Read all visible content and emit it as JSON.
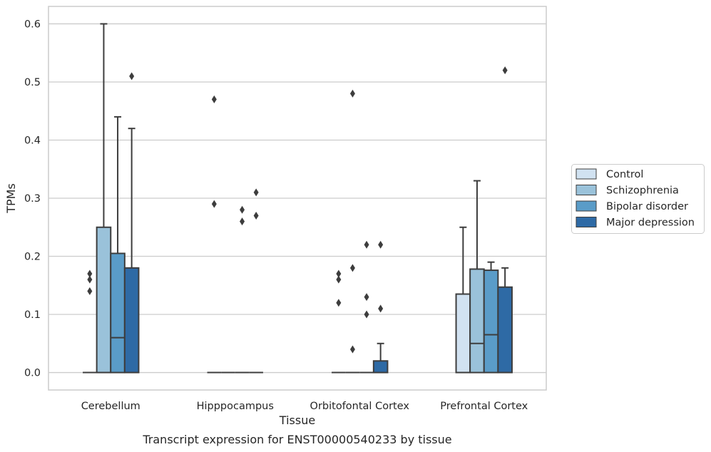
{
  "chart_data": {
    "type": "box",
    "caption": "Transcript expression for ENST00000540233 by tissue",
    "xlabel": "Tissue",
    "ylabel": "TPMs",
    "ylim": [
      -0.03,
      0.63
    ],
    "yticks": [
      0.0,
      0.1,
      0.2,
      0.3,
      0.4,
      0.5,
      0.6
    ],
    "ytick_labels": [
      "0.0",
      "0.1",
      "0.2",
      "0.3",
      "0.4",
      "0.5",
      "0.6"
    ],
    "grid": true,
    "legend_position": "right",
    "categories": [
      "Cerebellum",
      "Hipppocampus",
      "Orbitofontal Cortex",
      "Prefrontal Cortex"
    ],
    "series": [
      {
        "name": "Control",
        "color": "#d1e2f1",
        "boxes": [
          {
            "whislo": 0,
            "q1": 0,
            "med": 0,
            "q3": 0,
            "whishi": 0,
            "fliers": [
              0.14,
              0.16,
              0.17
            ]
          },
          {
            "whislo": 0,
            "q1": 0,
            "med": 0,
            "q3": 0,
            "whishi": 0,
            "fliers": [
              0.29,
              0.47
            ]
          },
          {
            "whislo": 0,
            "q1": 0,
            "med": 0,
            "q3": 0,
            "whishi": 0,
            "fliers": [
              0.12,
              0.16,
              0.17
            ]
          },
          {
            "whislo": 0,
            "q1": 0,
            "med": 0,
            "q3": 0.135,
            "whishi": 0.25,
            "fliers": []
          }
        ]
      },
      {
        "name": "Schizophrenia",
        "color": "#9ac2da",
        "boxes": [
          {
            "whislo": 0,
            "q1": 0,
            "med": 0,
            "q3": 0.25,
            "whishi": 0.6,
            "fliers": []
          },
          {
            "whislo": 0,
            "q1": 0,
            "med": 0,
            "q3": 0,
            "whishi": 0,
            "fliers": []
          },
          {
            "whislo": 0,
            "q1": 0,
            "med": 0,
            "q3": 0,
            "whishi": 0,
            "fliers": [
              0.04,
              0.18,
              0.48
            ]
          },
          {
            "whislo": 0,
            "q1": 0,
            "med": 0.05,
            "q3": 0.178,
            "whishi": 0.33,
            "fliers": []
          }
        ]
      },
      {
        "name": "Bipolar disorder",
        "color": "#5a9cc8",
        "boxes": [
          {
            "whislo": 0,
            "q1": 0,
            "med": 0.06,
            "q3": 0.205,
            "whishi": 0.44,
            "fliers": []
          },
          {
            "whislo": 0,
            "q1": 0,
            "med": 0,
            "q3": 0,
            "whishi": 0,
            "fliers": [
              0.26,
              0.28
            ]
          },
          {
            "whislo": 0,
            "q1": 0,
            "med": 0,
            "q3": 0,
            "whishi": 0,
            "fliers": [
              0.1,
              0.13,
              0.22
            ]
          },
          {
            "whislo": 0,
            "q1": 0,
            "med": 0.065,
            "q3": 0.176,
            "whishi": 0.19,
            "fliers": []
          }
        ]
      },
      {
        "name": "Major depression",
        "color": "#2e6aa5",
        "boxes": [
          {
            "whislo": 0,
            "q1": 0,
            "med": 0,
            "q3": 0.18,
            "whishi": 0.42,
            "fliers": [
              0.51
            ]
          },
          {
            "whislo": 0,
            "q1": 0,
            "med": 0,
            "q3": 0,
            "whishi": 0,
            "fliers": [
              0.27,
              0.31
            ]
          },
          {
            "whislo": 0,
            "q1": 0,
            "med": 0,
            "q3": 0.02,
            "whishi": 0.05,
            "fliers": [
              0.11,
              0.22
            ]
          },
          {
            "whislo": 0,
            "q1": 0,
            "med": 0,
            "q3": 0.147,
            "whishi": 0.18,
            "fliers": [
              0.52
            ]
          }
        ]
      }
    ]
  }
}
